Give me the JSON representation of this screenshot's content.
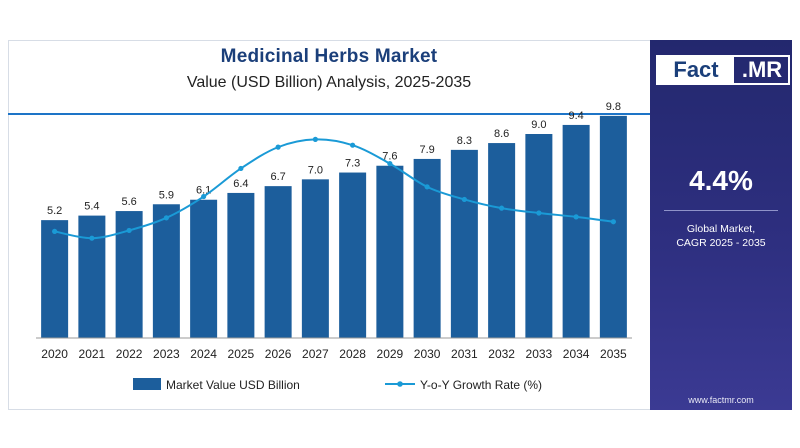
{
  "header": {
    "title": "Medicinal Herbs Market",
    "subtitle": "Value (USD Billion) Analysis, 2025-2035"
  },
  "brand": {
    "logo_left": "Fact",
    "logo_right": ".MR",
    "website": "www.factmr.com"
  },
  "summary": {
    "cagr": "4.4%",
    "cagr_label": "Global Market,\nCAGR 2025 - 2035"
  },
  "colors": {
    "bar": "#1c5e9c",
    "line": "#1a9ad6",
    "panel": "#2a2c7a"
  },
  "chart_data": {
    "type": "bar",
    "categories": [
      "2020",
      "2021",
      "2022",
      "2023",
      "2024",
      "2025",
      "2026",
      "2027",
      "2028",
      "2029",
      "2030",
      "2031",
      "2032",
      "2033",
      "2034",
      "2035"
    ],
    "series": [
      {
        "name": "Market Value USD Billion",
        "type": "bar",
        "values": [
          5.2,
          5.4,
          5.6,
          5.9,
          6.1,
          6.4,
          6.7,
          7.0,
          7.3,
          7.6,
          7.9,
          8.3,
          8.6,
          9.0,
          9.4,
          9.8
        ],
        "labels": [
          "5.2",
          "5.4",
          "5.6",
          "5.9",
          "6.1",
          "6.4",
          "6.7",
          "7.0",
          "7.3",
          "7.6",
          "7.9",
          "8.3",
          "8.6",
          "9.0",
          "9.4",
          "9.8"
        ]
      },
      {
        "name": "Y-o-Y Growth Rate (%)",
        "type": "line",
        "values": [
          4.5,
          3.8,
          4.6,
          5.9,
          8.1,
          11.0,
          13.2,
          14.0,
          13.4,
          11.5,
          9.1,
          7.8,
          6.9,
          6.4,
          6.0,
          5.5
        ]
      }
    ],
    "legend": "bottom",
    "grid": false,
    "bar_ylim": [
      0,
      10.5
    ],
    "line_ylim": [
      0,
      16
    ]
  }
}
